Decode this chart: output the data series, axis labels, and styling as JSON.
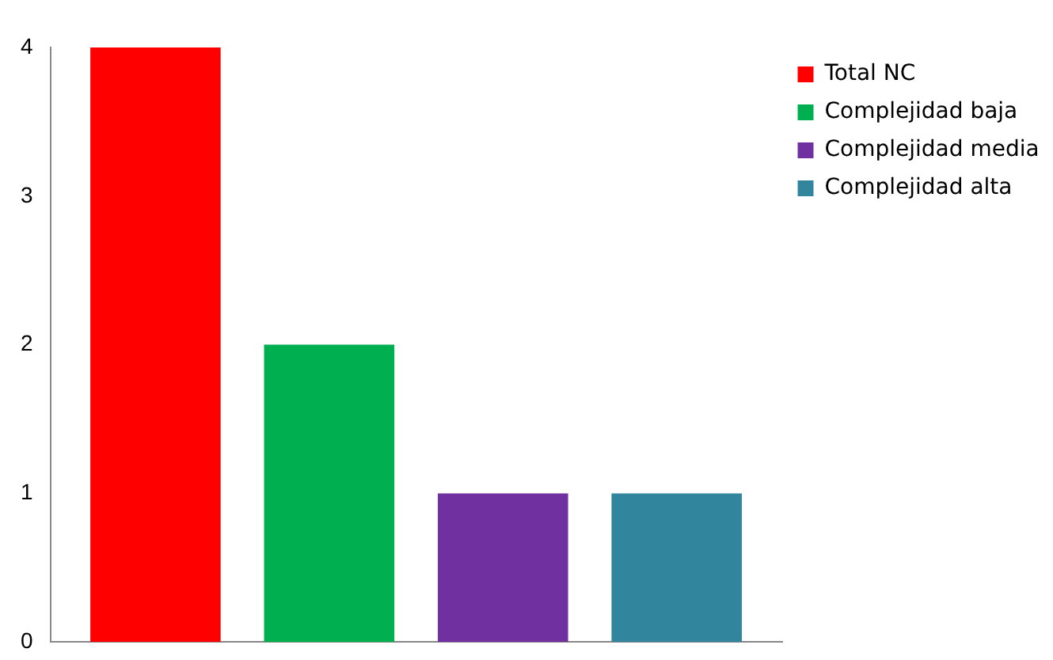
{
  "chart_data": {
    "type": "bar",
    "categories": [
      null
    ],
    "series": [
      {
        "name": "Total NC",
        "color": "#ff0000",
        "values": [
          4
        ]
      },
      {
        "name": "Complejidad baja",
        "color": "#00b050",
        "values": [
          2
        ]
      },
      {
        "name": "Complejidad media",
        "color": "#7030a0",
        "values": [
          1
        ]
      },
      {
        "name": "Complejidad alta",
        "color": "#31859c",
        "values": [
          1
        ]
      }
    ],
    "ylim": [
      0,
      4
    ],
    "yticks": [
      0,
      1,
      2,
      3,
      4
    ],
    "grid": false,
    "legend": "top right",
    "tick_labels": "y"
  }
}
